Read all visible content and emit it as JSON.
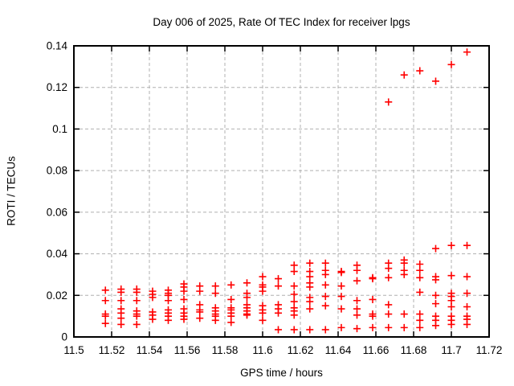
{
  "chart_data": {
    "type": "scatter",
    "title": "Day 006 of 2025, Rate Of TEC Index for receiver lpgs",
    "xlabel": "GPS time / hours",
    "ylabel": "ROTI / TECUs",
    "xlim": [
      11.5,
      11.72
    ],
    "ylim": [
      0,
      0.14
    ],
    "x_ticks": [
      {
        "v": 11.5,
        "label": "11.5"
      },
      {
        "v": 11.52,
        "label": "11.52"
      },
      {
        "v": 11.54,
        "label": "11.54"
      },
      {
        "v": 11.56,
        "label": "11.56"
      },
      {
        "v": 11.58,
        "label": "11.58"
      },
      {
        "v": 11.6,
        "label": "11.6"
      },
      {
        "v": 11.62,
        "label": "11.62"
      },
      {
        "v": 11.64,
        "label": "11.64"
      },
      {
        "v": 11.66,
        "label": "11.66"
      },
      {
        "v": 11.68,
        "label": "11.68"
      },
      {
        "v": 11.7,
        "label": "11.7"
      },
      {
        "v": 11.72,
        "label": "11.72"
      }
    ],
    "y_ticks": [
      {
        "v": 0,
        "label": "0"
      },
      {
        "v": 0.02,
        "label": "0.02"
      },
      {
        "v": 0.04,
        "label": "0.04"
      },
      {
        "v": 0.06,
        "label": "0.06"
      },
      {
        "v": 0.08,
        "label": "0.08"
      },
      {
        "v": 0.1,
        "label": "0.1"
      },
      {
        "v": 0.12,
        "label": "0.12"
      },
      {
        "v": 0.14,
        "label": "0.14"
      }
    ],
    "grid": true,
    "legend": "none",
    "marker": {
      "shape": "plus",
      "color": "#ff0000",
      "size": 9,
      "stroke_width": 1.6
    },
    "grid_color": "#b0b0b0",
    "axis_color": "#000000",
    "background_color": "#ffffff",
    "series": [
      {
        "name": "ROTI",
        "columns": [
          {
            "t": 11.5167,
            "values": [
              0.0225,
              0.0175,
              0.011,
              0.01,
              0.0065
            ]
          },
          {
            "t": 11.525,
            "values": [
              0.023,
              0.0215,
              0.0175,
              0.0135,
              0.0115,
              0.009,
              0.006
            ]
          },
          {
            "t": 11.5333,
            "values": [
              0.023,
              0.0215,
              0.0175,
              0.0125,
              0.011,
              0.01,
              0.006
            ]
          },
          {
            "t": 11.5417,
            "values": [
              0.022,
              0.0205,
              0.019,
              0.012,
              0.0105,
              0.0085
            ]
          },
          {
            "t": 11.55,
            "values": [
              0.0225,
              0.021,
              0.02,
              0.0175,
              0.013,
              0.0115,
              0.01,
              0.008
            ]
          },
          {
            "t": 11.5583,
            "values": [
              0.0255,
              0.024,
              0.022,
              0.018,
              0.0135,
              0.0115,
              0.01,
              0.0085
            ]
          },
          {
            "t": 11.5667,
            "values": [
              0.0245,
              0.022,
              0.0155,
              0.013,
              0.012,
              0.009
            ]
          },
          {
            "t": 11.575,
            "values": [
              0.0245,
              0.021,
              0.014,
              0.0125,
              0.011,
              0.01,
              0.008
            ]
          },
          {
            "t": 11.5833,
            "values": [
              0.025,
              0.018,
              0.014,
              0.013,
              0.0115,
              0.01,
              0.007
            ]
          },
          {
            "t": 11.5917,
            "values": [
              0.026,
              0.021,
              0.019,
              0.0155,
              0.014,
              0.0125,
              0.011,
              0.0105
            ]
          },
          {
            "t": 11.6,
            "values": [
              0.029,
              0.025,
              0.024,
              0.022,
              0.015,
              0.013,
              0.0115,
              0.008
            ]
          },
          {
            "t": 11.6083,
            "values": [
              0.028,
              0.0245,
              0.0155,
              0.0135,
              0.0115,
              0.0035
            ]
          },
          {
            "t": 11.6167,
            "values": [
              0.0345,
              0.0315,
              0.0245,
              0.0205,
              0.017,
              0.014,
              0.0125,
              0.0105,
              0.0035
            ]
          },
          {
            "t": 11.625,
            "values": [
              0.0355,
              0.0315,
              0.029,
              0.026,
              0.024,
              0.019,
              0.017,
              0.0135,
              0.0035
            ]
          },
          {
            "t": 11.6333,
            "values": [
              0.0355,
              0.032,
              0.03,
              0.025,
              0.0195,
              0.015,
              0.0035
            ]
          },
          {
            "t": 11.6417,
            "values": [
              0.0315,
              0.031,
              0.0245,
              0.0195,
              0.0135,
              0.0045
            ]
          },
          {
            "t": 11.65,
            "values": [
              0.0345,
              0.032,
              0.027,
              0.0175,
              0.0135,
              0.0105,
              0.004
            ]
          },
          {
            "t": 11.6583,
            "values": [
              0.0285,
              0.028,
              0.018,
              0.011,
              0.01,
              0.0045
            ]
          },
          {
            "t": 11.6667,
            "values": [
              0.113,
              0.0355,
              0.033,
              0.0285,
              0.0155,
              0.011,
              0.0045
            ]
          },
          {
            "t": 11.675,
            "values": [
              0.126,
              0.037,
              0.0355,
              0.032,
              0.03,
              0.011,
              0.0045
            ]
          },
          {
            "t": 11.6833,
            "values": [
              0.128,
              0.035,
              0.032,
              0.0285,
              0.0215,
              0.011,
              0.008,
              0.0045
            ]
          },
          {
            "t": 11.6917,
            "values": [
              0.123,
              0.0425,
              0.029,
              0.0275,
              0.02,
              0.016,
              0.01,
              0.008,
              0.0055
            ]
          },
          {
            "t": 11.7,
            "values": [
              0.131,
              0.044,
              0.0295,
              0.021,
              0.0195,
              0.0175,
              0.0145,
              0.01,
              0.008,
              0.006
            ]
          },
          {
            "t": 11.7083,
            "values": [
              0.137,
              0.044,
              0.029,
              0.021,
              0.0145,
              0.01,
              0.0085,
              0.006
            ]
          }
        ]
      }
    ]
  }
}
